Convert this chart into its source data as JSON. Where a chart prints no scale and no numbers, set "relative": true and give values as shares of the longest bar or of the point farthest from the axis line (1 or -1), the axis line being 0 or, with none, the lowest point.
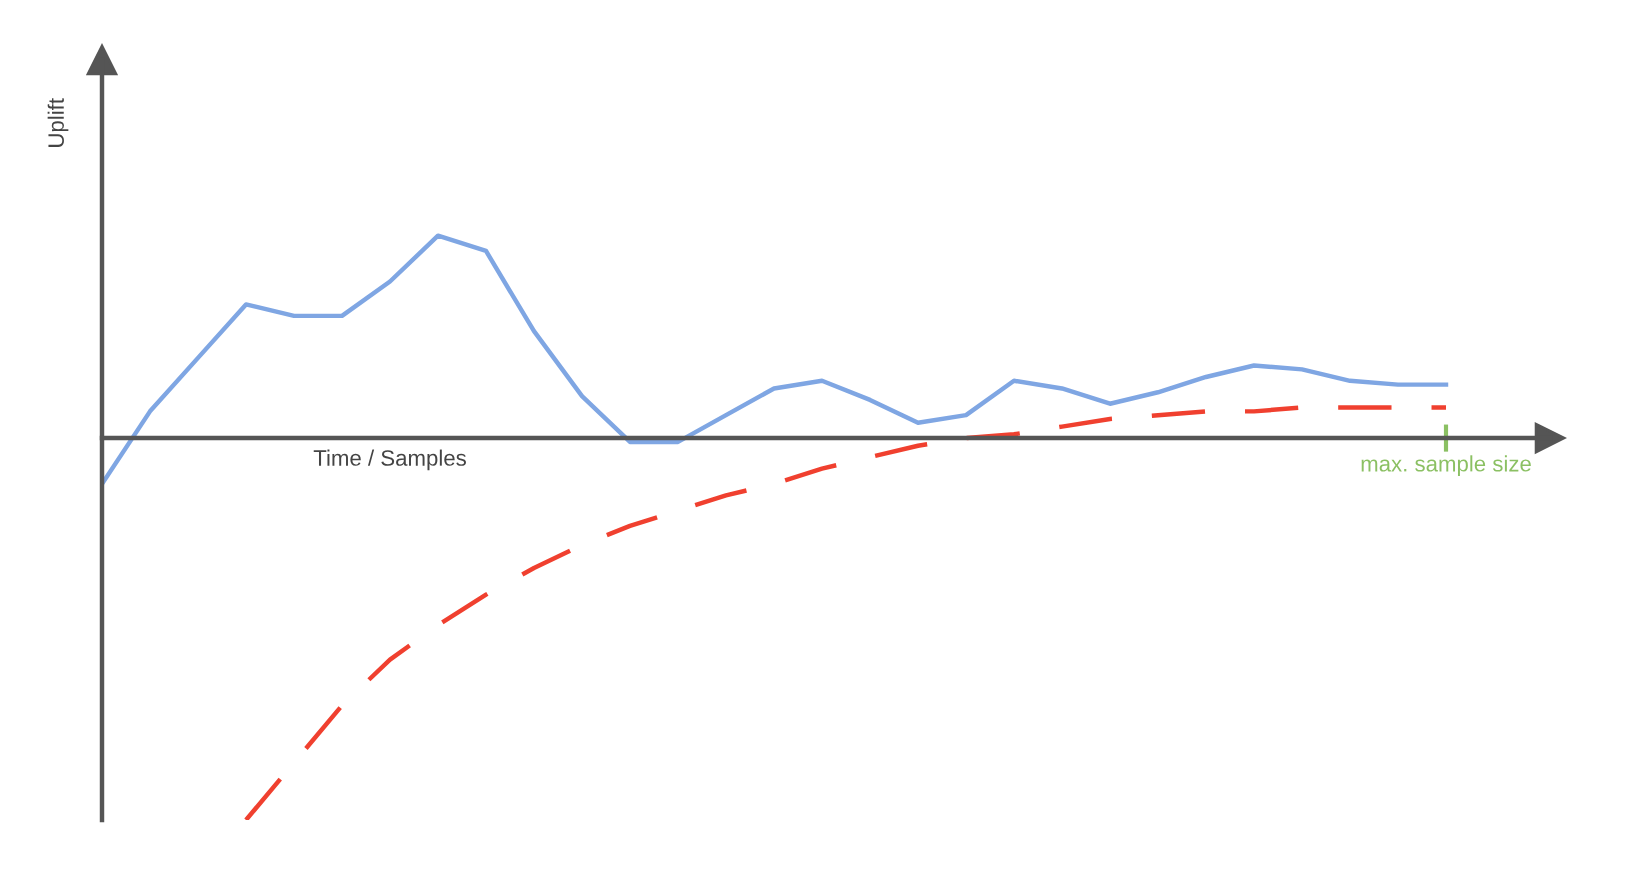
{
  "chart_data": {
    "type": "line",
    "relative": true,
    "ylabel": "Uplift",
    "xlabel": "Time / Samples",
    "categories": [
      null,
      null,
      null,
      null,
      null,
      null,
      null,
      null,
      null,
      null,
      null,
      null,
      null,
      null,
      null,
      null,
      null,
      null,
      null,
      null,
      null,
      null,
      null,
      null,
      null,
      null,
      null,
      null,
      null
    ],
    "series": [
      {
        "color": "#7fa6e3",
        "line_style": "solid",
        "values": [
          -0.12,
          0.07,
          0.21,
          0.35,
          0.32,
          0.32,
          0.41,
          0.53,
          0.49,
          0.28,
          0.11,
          -0.01,
          -0.01,
          0.06,
          0.13,
          0.15,
          0.1,
          0.04,
          0.06,
          0.15,
          0.13,
          0.09,
          0.12,
          0.16,
          0.19,
          0.18,
          0.15,
          0.14,
          0.14
        ]
      },
      {
        "color": "#f0402f",
        "line_style": "dashed",
        "values": [
          null,
          null,
          null,
          -1.0,
          -0.85,
          -0.7,
          -0.58,
          -0.49,
          -0.41,
          -0.34,
          -0.28,
          -0.23,
          -0.19,
          -0.15,
          -0.12,
          -0.08,
          -0.05,
          -0.02,
          0.0,
          0.01,
          0.03,
          0.05,
          0.06,
          0.07,
          0.07,
          0.08,
          0.08,
          0.08,
          0.08
        ]
      }
    ],
    "annotations": [
      "max. sample size"
    ],
    "legend": false
  }
}
